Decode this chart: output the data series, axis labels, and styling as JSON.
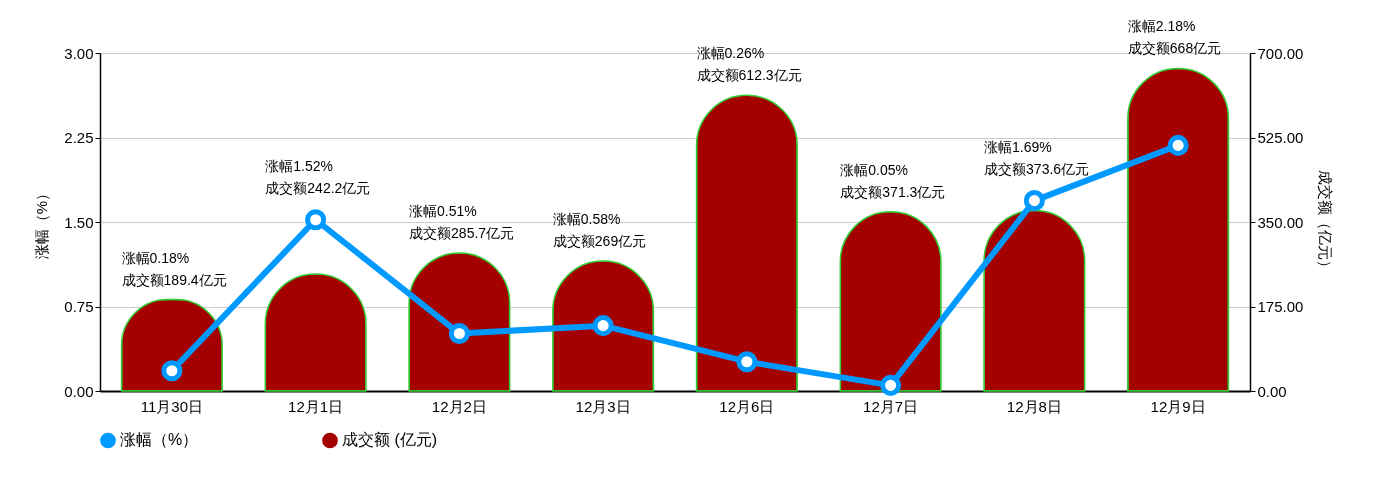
{
  "chart_data": {
    "type": "bar",
    "categories": [
      "11月30日",
      "12月1日",
      "12月2日",
      "12月3日",
      "12月6日",
      "12月7日",
      "12月8日",
      "12月9日"
    ],
    "ylabel": "涨幅（%）",
    "y2label": "成交额（亿元）",
    "ylim": [
      0,
      3
    ],
    "yticks": [
      {
        "value": 0,
        "label": "0.00"
      },
      {
        "value": 0.75,
        "label": "0.75"
      },
      {
        "value": 1.5,
        "label": "1.50"
      },
      {
        "value": 2.25,
        "label": "2.25"
      },
      {
        "value": 3,
        "label": "3.00"
      }
    ],
    "y2lim": [
      0,
      700
    ],
    "y2ticks": [
      {
        "value": 0,
        "label": "0.00"
      },
      {
        "value": 175,
        "label": "175.00"
      },
      {
        "value": 350,
        "label": "350.00"
      },
      {
        "value": 525,
        "label": "525.00"
      },
      {
        "value": 700,
        "label": "700.00"
      }
    ],
    "series": [
      {
        "name": "涨幅（%）",
        "type": "line",
        "color": "#0099ff",
        "marker": "circle",
        "values": [
          0.18,
          1.52,
          0.51,
          0.58,
          0.26,
          0.05,
          1.69,
          2.18
        ]
      },
      {
        "name": "成交额 (亿元)",
        "type": "bar",
        "axis": "y2",
        "color": "#a50000",
        "values": [
          189.4,
          242.2,
          285.7,
          269,
          612.3,
          371.3,
          373.6,
          668
        ]
      }
    ],
    "annotations": [
      "涨幅0.18%",
      "成交额189.4亿元",
      "涨幅1.52%",
      "成交额242.2亿元",
      "涨幅0.51%",
      "成交额285.7亿元",
      "涨幅0.58%",
      "成交额269亿元",
      "涨幅0.26%",
      "成交额612.3亿元",
      "涨幅0.05%",
      "成交额371.3亿元",
      "涨幅1.69%",
      "成交额373.6亿元",
      "涨幅2.18%",
      "成交额668亿元"
    ],
    "grid": "y",
    "legend": "bottom"
  }
}
